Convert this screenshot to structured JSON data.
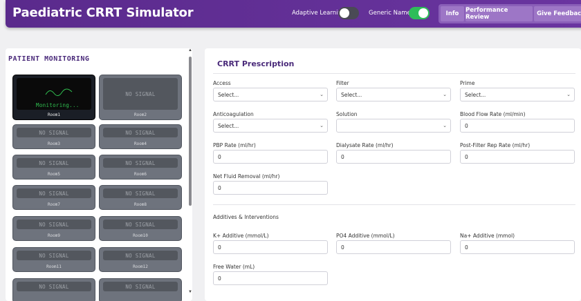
{
  "header": {
    "title": "Paediatric CRRT Simulator",
    "adaptive_learning_label": "Adaptive Learning",
    "adaptive_learning_on": false,
    "generic_names_label": "Generic Names",
    "generic_names_on": true,
    "nav": [
      "Info",
      "Performance Review",
      "Give Feedback"
    ]
  },
  "monitoring": {
    "title": "PATIENT MONITORING",
    "rooms": [
      {
        "label": "Room1",
        "screen": "Monitoring...",
        "active": true
      },
      {
        "label": "Room2",
        "screen": "NO SIGNAL",
        "active": false
      },
      {
        "label": "Room3",
        "screen": "NO SIGNAL",
        "active": false
      },
      {
        "label": "Room4",
        "screen": "NO SIGNAL",
        "active": false
      },
      {
        "label": "Room5",
        "screen": "NO SIGNAL",
        "active": false
      },
      {
        "label": "Room6",
        "screen": "NO SIGNAL",
        "active": false
      },
      {
        "label": "Room7",
        "screen": "NO SIGNAL",
        "active": false
      },
      {
        "label": "Room8",
        "screen": "NO SIGNAL",
        "active": false
      },
      {
        "label": "Room9",
        "screen": "NO SIGNAL",
        "active": false
      },
      {
        "label": "Room10",
        "screen": "NO SIGNAL",
        "active": false
      },
      {
        "label": "Room11",
        "screen": "NO SIGNAL",
        "active": false
      },
      {
        "label": "Room12",
        "screen": "NO SIGNAL",
        "active": false
      },
      {
        "label": "",
        "screen": "NO SIGNAL",
        "active": false
      },
      {
        "label": "",
        "screen": "NO SIGNAL",
        "active": false
      }
    ]
  },
  "prescription": {
    "title": "CRRT Prescription",
    "fields": [
      {
        "label": "Access",
        "value": "Select...",
        "type": "select"
      },
      {
        "label": "Filter",
        "value": "Select...",
        "type": "select"
      },
      {
        "label": "Prime",
        "value": "Select...",
        "type": "select"
      },
      {
        "label": "Anticoagulation",
        "value": "Select...",
        "type": "select"
      },
      {
        "label": "Solution",
        "value": "",
        "type": "select"
      },
      {
        "label": "Blood Flow Rate (ml/min)",
        "value": "0",
        "type": "input"
      },
      {
        "label": "PBP Rate (ml/hr)",
        "value": "0",
        "type": "input"
      },
      {
        "label": "Dialysate Rate (ml/hr)",
        "value": "0",
        "type": "input"
      },
      {
        "label": "Post-Filter Rep Rate (ml/hr)",
        "value": "0",
        "type": "input"
      },
      {
        "label": "Net Fluid Removal (ml/hr)",
        "value": "0",
        "type": "input"
      }
    ],
    "additives_title": "Additives & Interventions",
    "additives": [
      {
        "label": "K+ Additive (mmol/L)",
        "value": "0",
        "type": "input"
      },
      {
        "label": "PO4 Additive (mmol/L)",
        "value": "0",
        "type": "input"
      },
      {
        "label": "Na+ Additive (mmol)",
        "value": "0",
        "type": "input"
      },
      {
        "label": "Free Water (mL)",
        "value": "0",
        "type": "input"
      }
    ]
  }
}
